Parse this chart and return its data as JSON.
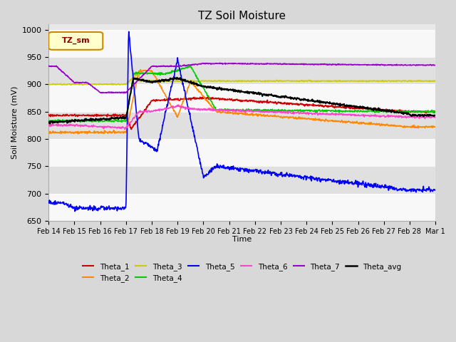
{
  "title": "TZ Soil Moisture",
  "xlabel": "Time",
  "ylabel": "Soil Moisture (mV)",
  "ylim": [
    650,
    1010
  ],
  "yticks": [
    650,
    700,
    750,
    800,
    850,
    900,
    950,
    1000
  ],
  "legend_label": "TZ_sm",
  "series_colors": {
    "Theta_1": "#cc0000",
    "Theta_2": "#ff8800",
    "Theta_3": "#cccc00",
    "Theta_4": "#00cc00",
    "Theta_5": "#0000ff",
    "Theta_6": "#ff44cc",
    "Theta_7": "#9900cc",
    "Theta_avg": "#000000"
  },
  "date_labels": [
    "Feb 14",
    "Feb 15",
    "Feb 16",
    "Feb 17",
    "Feb 18",
    "Feb 19",
    "Feb 20",
    "Feb 21",
    "Feb 22",
    "Feb 23",
    "Feb 24",
    "Feb 25",
    "Feb 26",
    "Feb 27",
    "Feb 28",
    "Mar 1"
  ]
}
